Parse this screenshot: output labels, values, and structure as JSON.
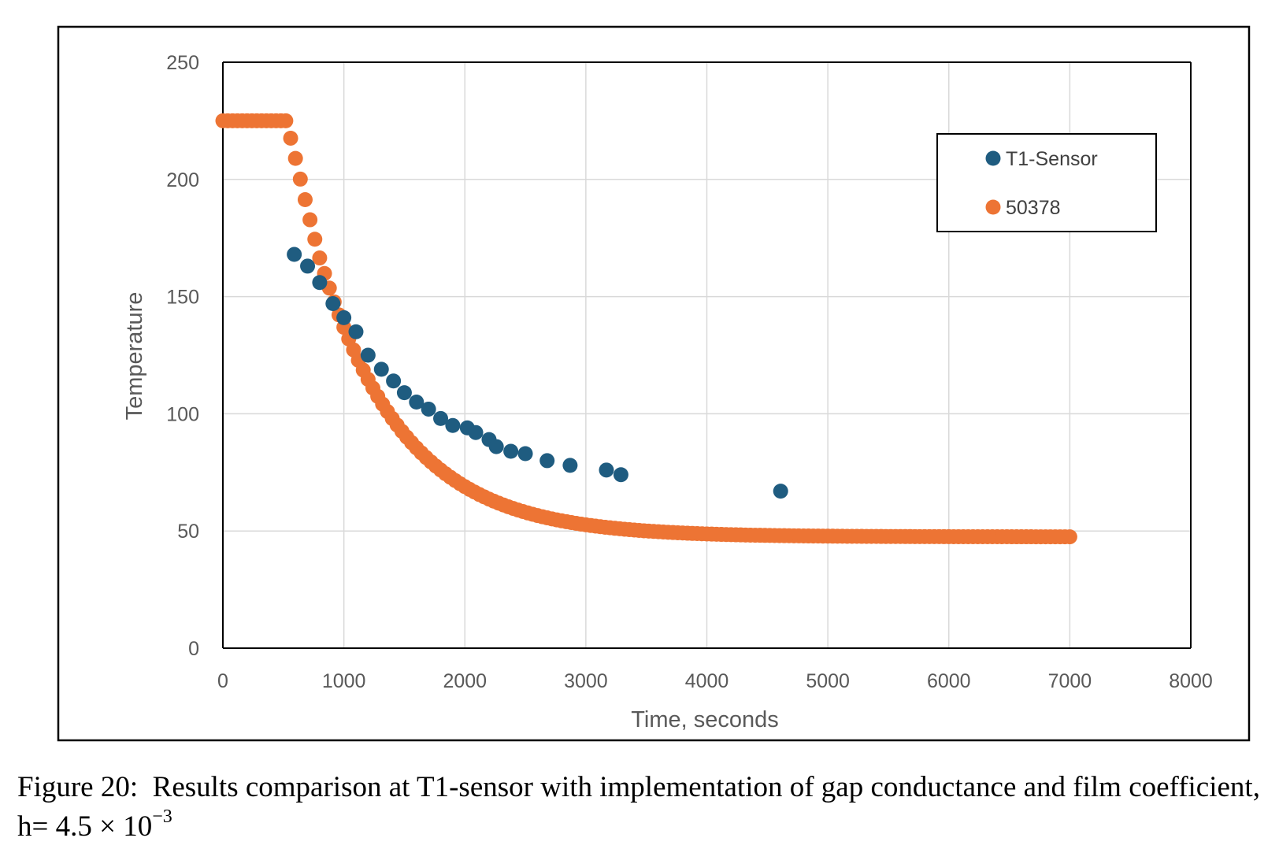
{
  "colors": {
    "series_1": "#1f5c80",
    "series_2": "#ed7434",
    "gridline": "#d9d9d9",
    "axis": "#000000",
    "text": "#595959"
  },
  "caption": {
    "lead": "Figure 20:",
    "text": "Results comparison at T1-sensor with implementation of gap conductance and film coefficient, h= 4.5 × 10",
    "exponent": "−3"
  },
  "chart_data": {
    "type": "scatter",
    "title": "",
    "xlabel": "Time, seconds",
    "ylabel": "Temperature",
    "xlim": [
      0,
      8000
    ],
    "ylim": [
      0,
      250
    ],
    "x_ticks": [
      "0",
      "1000",
      "2000",
      "3000",
      "4000",
      "5000",
      "6000",
      "7000",
      "8000"
    ],
    "y_ticks": [
      "0",
      "50",
      "100",
      "150",
      "200",
      "250"
    ],
    "grid": true,
    "legend_position": "top-right",
    "series": [
      {
        "name": "T1-Sensor",
        "color": "#1f5c80",
        "points": [
          [
            590,
            168
          ],
          [
            700,
            163
          ],
          [
            800,
            156
          ],
          [
            910,
            147
          ],
          [
            1000,
            141
          ],
          [
            1100,
            135
          ],
          [
            1200,
            125
          ],
          [
            1310,
            119
          ],
          [
            1410,
            114
          ],
          [
            1500,
            109
          ],
          [
            1600,
            105
          ],
          [
            1700,
            102
          ],
          [
            1800,
            98
          ],
          [
            1900,
            95
          ],
          [
            2020,
            94
          ],
          [
            2090,
            92
          ],
          [
            2200,
            89
          ],
          [
            2260,
            86
          ],
          [
            2380,
            84
          ],
          [
            2500,
            83
          ],
          [
            2680,
            80
          ],
          [
            2870,
            78
          ],
          [
            3170,
            76
          ],
          [
            3290,
            74
          ],
          [
            4610,
            67
          ]
        ]
      },
      {
        "name": "50378",
        "color": "#ed7434",
        "curve": {
          "x_start": 0,
          "x_end": 7000,
          "step": 40,
          "initial_temperature": 225,
          "plateau_end": 520,
          "final_temperature": 47.5,
          "decay_seconds": 700,
          "onset": 280
        },
        "points_note_for_values": "values follow 225 until 520 s, then decay toward 47.5"
      }
    ]
  }
}
